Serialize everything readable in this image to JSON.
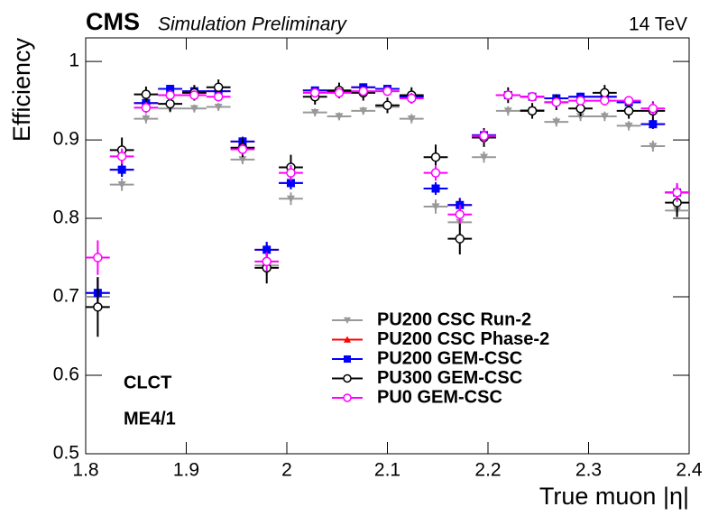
{
  "chart_data": {
    "type": "errorbar",
    "experiment": "CMS",
    "subtitle": "Simulation Preliminary",
    "energy": "14 TeV",
    "xlabel": "True muon |η|",
    "ylabel": "Efficiency",
    "annotations": [
      "CLCT",
      "ME4/1"
    ],
    "x": [
      1.812,
      1.836,
      1.86,
      1.884,
      1.908,
      1.932,
      1.956,
      1.98,
      2.004,
      2.028,
      2.052,
      2.076,
      2.1,
      2.124,
      2.148,
      2.172,
      2.196,
      2.22,
      2.244,
      2.268,
      2.292,
      2.316,
      2.34,
      2.364,
      2.388
    ],
    "xerr": 0.012,
    "xlim": [
      1.8,
      2.4
    ],
    "xticks": [
      1.8,
      1.9,
      2,
      2.1,
      2.2,
      2.3,
      2.4
    ],
    "ylim": [
      0.5,
      1.03
    ],
    "yticks": [
      0.5,
      0.6,
      0.7,
      0.8,
      0.9,
      1
    ],
    "series": [
      {
        "name": "PU200 CSC Run-2",
        "color": "#999999",
        "marker": "triangle-down",
        "values": [
          0.7,
          0.843,
          0.927,
          0.94,
          0.94,
          0.942,
          0.875,
          0.74,
          0.825,
          0.935,
          0.93,
          0.937,
          0.942,
          0.927,
          0.815,
          0.795,
          0.878,
          0.937,
          0.938,
          0.923,
          0.93,
          0.93,
          0.918,
          0.892,
          0.81
        ],
        "errors": [
          0.02,
          0.008,
          0.006,
          0.005,
          0.005,
          0.005,
          0.006,
          0.012,
          0.008,
          0.005,
          0.005,
          0.005,
          0.005,
          0.006,
          0.009,
          0.01,
          0.007,
          0.006,
          0.006,
          0.006,
          0.006,
          0.006,
          0.006,
          0.007,
          0.01
        ]
      },
      {
        "name": "PU200 CSC Phase-2",
        "color": "#ff0000",
        "marker": "triangle-up",
        "values": [
          0.705,
          0.862,
          0.947,
          0.965,
          0.962,
          0.962,
          0.898,
          0.76,
          0.845,
          0.963,
          0.962,
          0.967,
          0.965,
          0.955,
          0.838,
          0.817,
          0.906,
          0.957,
          0.955,
          0.953,
          0.955,
          0.955,
          0.948,
          0.92,
          0.833
        ],
        "errors": [
          0.02,
          0.009,
          0.006,
          0.004,
          0.004,
          0.004,
          0.006,
          0.01,
          0.008,
          0.004,
          0.004,
          0.004,
          0.004,
          0.005,
          0.008,
          0.009,
          0.006,
          0.005,
          0.005,
          0.005,
          0.005,
          0.005,
          0.005,
          0.006,
          0.01
        ]
      },
      {
        "name": "PU200 GEM-CSC",
        "color": "#0000ff",
        "marker": "square",
        "values": [
          0.705,
          0.862,
          0.947,
          0.965,
          0.962,
          0.962,
          0.898,
          0.76,
          0.845,
          0.963,
          0.962,
          0.967,
          0.965,
          0.955,
          0.838,
          0.817,
          0.906,
          0.957,
          0.955,
          0.953,
          0.955,
          0.955,
          0.948,
          0.92,
          0.833
        ],
        "errors": [
          0.02,
          0.009,
          0.006,
          0.004,
          0.004,
          0.004,
          0.006,
          0.01,
          0.008,
          0.004,
          0.004,
          0.004,
          0.004,
          0.005,
          0.008,
          0.009,
          0.006,
          0.005,
          0.005,
          0.005,
          0.005,
          0.005,
          0.005,
          0.006,
          0.01
        ]
      },
      {
        "name": "PU300 GEM-CSC",
        "color": "#000000",
        "marker": "open-circle",
        "values": [
          0.687,
          0.887,
          0.958,
          0.946,
          0.96,
          0.967,
          0.89,
          0.737,
          0.865,
          0.955,
          0.963,
          0.96,
          0.944,
          0.957,
          0.878,
          0.774,
          0.903,
          0.957,
          0.937,
          0.948,
          0.94,
          0.96,
          0.937,
          0.937,
          0.82
        ],
        "errors": [
          0.038,
          0.016,
          0.01,
          0.01,
          0.01,
          0.01,
          0.012,
          0.02,
          0.016,
          0.01,
          0.01,
          0.01,
          0.01,
          0.01,
          0.016,
          0.02,
          0.012,
          0.01,
          0.01,
          0.01,
          0.01,
          0.01,
          0.01,
          0.012,
          0.018
        ]
      },
      {
        "name": "PU0 GEM-CSC",
        "color": "#ff00ff",
        "marker": "open-circle",
        "values": [
          0.75,
          0.879,
          0.941,
          0.957,
          0.957,
          0.955,
          0.888,
          0.745,
          0.858,
          0.96,
          0.96,
          0.962,
          0.962,
          0.953,
          0.858,
          0.805,
          0.905,
          0.957,
          0.955,
          0.948,
          0.95,
          0.95,
          0.95,
          0.94,
          0.833
        ],
        "errors": [
          0.022,
          0.01,
          0.007,
          0.006,
          0.006,
          0.006,
          0.007,
          0.012,
          0.01,
          0.006,
          0.006,
          0.006,
          0.006,
          0.007,
          0.01,
          0.012,
          0.008,
          0.006,
          0.006,
          0.006,
          0.006,
          0.006,
          0.006,
          0.008,
          0.012
        ]
      }
    ]
  }
}
